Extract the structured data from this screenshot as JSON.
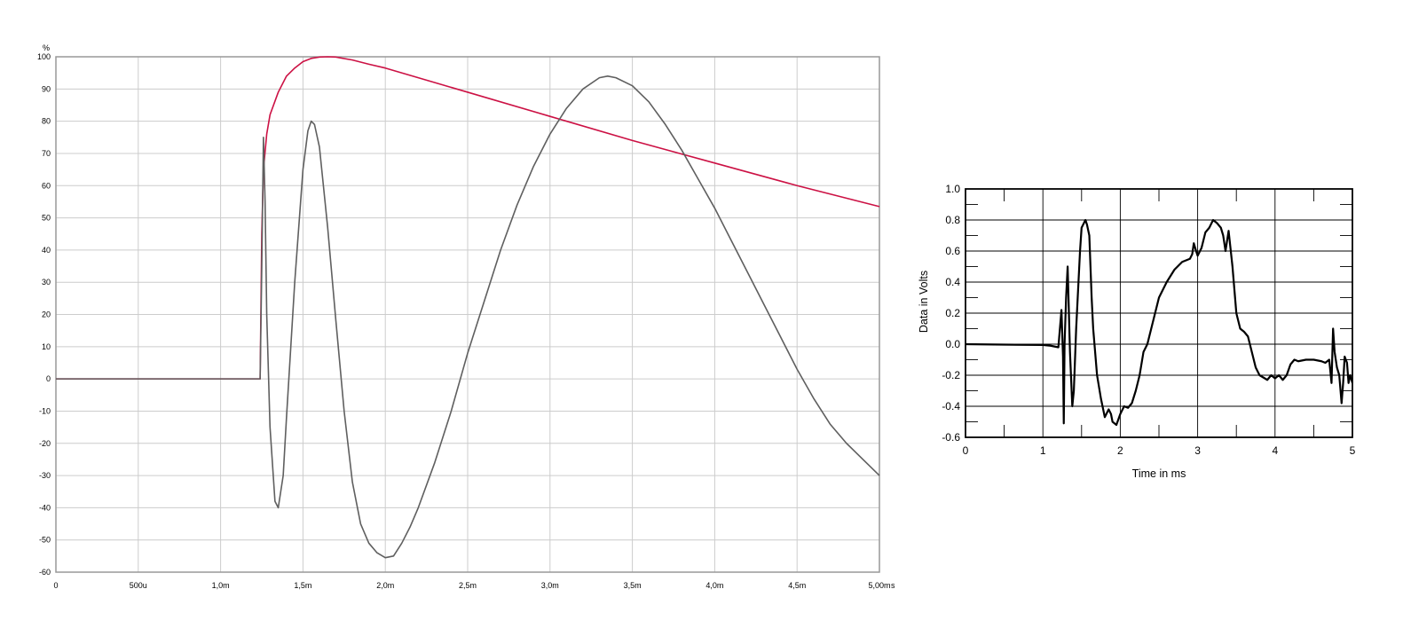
{
  "chart_data": [
    {
      "type": "line",
      "title": "",
      "xlabel": "",
      "ylabel": "",
      "y_unit": "%",
      "x_unit": "s",
      "xlim": [
        0,
        0.005
      ],
      "ylim": [
        -60,
        100
      ],
      "grid": true,
      "legend": "none",
      "x_ticks": [
        {
          "value": 0,
          "label": "0"
        },
        {
          "value": 0.0005,
          "label": "500u"
        },
        {
          "value": 0.001,
          "label": "1,0m"
        },
        {
          "value": 0.0015,
          "label": "1,5m"
        },
        {
          "value": 0.002,
          "label": "2,0m"
        },
        {
          "value": 0.0025,
          "label": "2,5m"
        },
        {
          "value": 0.003,
          "label": "3,0m"
        },
        {
          "value": 0.0035,
          "label": "3,5m"
        },
        {
          "value": 0.004,
          "label": "4,0m"
        },
        {
          "value": 0.0045,
          "label": "4,5m"
        },
        {
          "value": 0.005,
          "label": "5,00m"
        }
      ],
      "y_ticks": [
        100,
        90,
        80,
        70,
        60,
        50,
        40,
        30,
        20,
        10,
        0,
        -10,
        -20,
        -30,
        -40,
        -50,
        -60
      ],
      "series": [
        {
          "color": "#5f5f5f",
          "x": [
            0,
            0.00124,
            0.00125,
            0.00126,
            0.00127,
            0.00128,
            0.0013,
            0.00133,
            0.00135,
            0.00138,
            0.0014,
            0.00145,
            0.0015,
            0.00153,
            0.00155,
            0.00157,
            0.0016,
            0.00165,
            0.0017,
            0.00175,
            0.0018,
            0.00185,
            0.0019,
            0.00195,
            0.002,
            0.00205,
            0.0021,
            0.00215,
            0.0022,
            0.0023,
            0.0024,
            0.0025,
            0.0026,
            0.0027,
            0.0028,
            0.0029,
            0.003,
            0.0031,
            0.0032,
            0.0033,
            0.00335,
            0.0034,
            0.0035,
            0.0036,
            0.0037,
            0.0038,
            0.0039,
            0.004,
            0.0041,
            0.0042,
            0.0043,
            0.0044,
            0.0045,
            0.0046,
            0.0047,
            0.0048,
            0.0049,
            0.005
          ],
          "values": [
            0,
            0,
            35,
            75,
            55,
            20,
            -15,
            -38,
            -40,
            -30,
            -12,
            30,
            65,
            77,
            80,
            79,
            72,
            47,
            18,
            -10,
            -32,
            -45,
            -51,
            -54,
            -55.5,
            -55,
            -51,
            -46,
            -40,
            -26,
            -10,
            8,
            24,
            40,
            54,
            66,
            76,
            84,
            90,
            93.5,
            94,
            93.5,
            91,
            86,
            79,
            71,
            62,
            53,
            43,
            33,
            23,
            13,
            3,
            -6,
            -14,
            -20,
            -25,
            -30
          ]
        },
        {
          "color": "#cc1144",
          "x": [
            0,
            0.00124,
            0.00125,
            0.00126,
            0.00128,
            0.0013,
            0.00135,
            0.0014,
            0.00145,
            0.0015,
            0.00155,
            0.0016,
            0.00165,
            0.0017,
            0.0018,
            0.0019,
            0.002,
            0.0022,
            0.0025,
            0.003,
            0.0035,
            0.004,
            0.0045,
            0.005
          ],
          "values": [
            0,
            0,
            45,
            65,
            76,
            82,
            89,
            94,
            96.5,
            98.5,
            99.5,
            99.9,
            100,
            99.9,
            99,
            97.7,
            96.5,
            93.5,
            89,
            81.5,
            74,
            67,
            60,
            53.5
          ]
        }
      ]
    },
    {
      "type": "line",
      "title": "",
      "xlabel": "Time in ms",
      "ylabel": "Data in Volts",
      "xlim": [
        0,
        5
      ],
      "ylim": [
        -0.6,
        1.0
      ],
      "grid": true,
      "legend": "none",
      "x_ticks": [
        {
          "value": 0,
          "label": "0"
        },
        {
          "value": 1,
          "label": "1"
        },
        {
          "value": 2,
          "label": "2"
        },
        {
          "value": 3,
          "label": "3"
        },
        {
          "value": 4,
          "label": "4"
        },
        {
          "value": 5,
          "label": "5"
        }
      ],
      "y_ticks": [
        {
          "value": 1.0,
          "label": "1.0"
        },
        {
          "value": 0.8,
          "label": "0.8"
        },
        {
          "value": 0.6,
          "label": "0.6"
        },
        {
          "value": 0.4,
          "label": "0.4"
        },
        {
          "value": 0.2,
          "label": "0.2"
        },
        {
          "value": 0.0,
          "label": "0.0"
        },
        {
          "value": -0.2,
          "label": "-0.2"
        },
        {
          "value": -0.4,
          "label": "-0.4"
        },
        {
          "value": -0.6,
          "label": "-0.6"
        }
      ],
      "series": [
        {
          "color": "#000000",
          "x": [
            0,
            0.5,
            1.0,
            1.1,
            1.2,
            1.24,
            1.26,
            1.27,
            1.28,
            1.3,
            1.32,
            1.35,
            1.38,
            1.4,
            1.43,
            1.45,
            1.48,
            1.5,
            1.53,
            1.55,
            1.57,
            1.6,
            1.63,
            1.65,
            1.7,
            1.75,
            1.8,
            1.85,
            1.88,
            1.9,
            1.95,
            2.0,
            2.05,
            2.1,
            2.15,
            2.2,
            2.25,
            2.3,
            2.35,
            2.4,
            2.45,
            2.5,
            2.6,
            2.7,
            2.8,
            2.9,
            2.93,
            2.95,
            2.98,
            3.0,
            3.05,
            3.08,
            3.1,
            3.15,
            3.2,
            3.25,
            3.3,
            3.33,
            3.36,
            3.4,
            3.45,
            3.5,
            3.55,
            3.6,
            3.65,
            3.7,
            3.75,
            3.8,
            3.9,
            3.95,
            4.0,
            4.05,
            4.1,
            4.15,
            4.2,
            4.25,
            4.3,
            4.4,
            4.5,
            4.6,
            4.65,
            4.7,
            4.73,
            4.75,
            4.77,
            4.8,
            4.83,
            4.86,
            4.88,
            4.9,
            4.93,
            4.95,
            4.97,
            5.0
          ],
          "values": [
            0.0,
            -0.003,
            -0.005,
            -0.01,
            -0.02,
            0.22,
            -0.08,
            -0.51,
            0.0,
            0.3,
            0.5,
            -0.05,
            -0.4,
            -0.3,
            0.1,
            0.3,
            0.6,
            0.75,
            0.78,
            0.8,
            0.77,
            0.7,
            0.3,
            0.1,
            -0.2,
            -0.35,
            -0.47,
            -0.42,
            -0.45,
            -0.5,
            -0.52,
            -0.45,
            -0.4,
            -0.41,
            -0.38,
            -0.3,
            -0.2,
            -0.05,
            0.0,
            0.1,
            0.2,
            0.3,
            0.4,
            0.48,
            0.53,
            0.55,
            0.58,
            0.65,
            0.6,
            0.57,
            0.62,
            0.68,
            0.72,
            0.75,
            0.8,
            0.78,
            0.75,
            0.7,
            0.6,
            0.73,
            0.5,
            0.2,
            0.1,
            0.08,
            0.05,
            -0.05,
            -0.15,
            -0.2,
            -0.23,
            -0.2,
            -0.22,
            -0.2,
            -0.23,
            -0.2,
            -0.13,
            -0.1,
            -0.11,
            -0.1,
            -0.1,
            -0.11,
            -0.12,
            -0.1,
            -0.25,
            0.1,
            -0.05,
            -0.15,
            -0.2,
            -0.38,
            -0.25,
            -0.08,
            -0.12,
            -0.25,
            -0.2,
            -0.25
          ]
        }
      ]
    }
  ]
}
